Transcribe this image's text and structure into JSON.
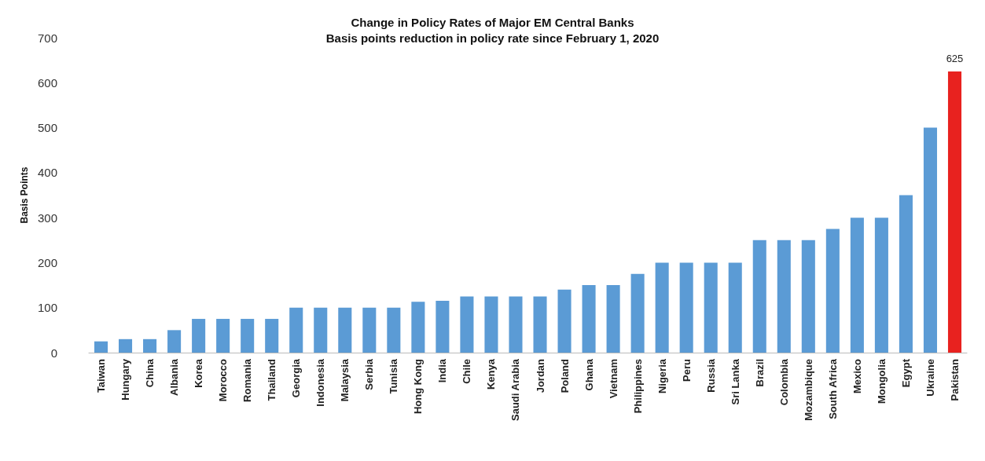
{
  "chart_data": {
    "type": "bar",
    "title": "Change in Policy Rates of Major EM Central Banks",
    "subtitle": "Basis points reduction in policy rate since February 1, 2020",
    "ylabel": "Basis Points",
    "categories": [
      "Taiwan",
      "Hungary",
      "China",
      "Albania",
      "Korea",
      "Morocco",
      "Romania",
      "Thailand",
      "Georgia",
      "Indonesia",
      "Malaysia",
      "Serbia",
      "Tunisia",
      "Hong Kong",
      "India",
      "Chile",
      "Kenya",
      "Saudi Arabia",
      "Jordan",
      "Poland",
      "Ghana",
      "Vietnam",
      "Philippines",
      "Nigeria",
      "Peru",
      "Russia",
      "Sri Lanka",
      "Brazil",
      "Colombia",
      "Mozambique",
      "South Africa",
      "Mexico",
      "Mongolia",
      "Egypt",
      "Ukraine",
      "Pakistan"
    ],
    "values": [
      25,
      30,
      30,
      50,
      75,
      75,
      75,
      75,
      100,
      100,
      100,
      100,
      100,
      113,
      115,
      125,
      125,
      125,
      125,
      140,
      150,
      150,
      175,
      200,
      200,
      200,
      200,
      250,
      250,
      250,
      275,
      300,
      300,
      350,
      500,
      625
    ],
    "colors": [
      "#5b9bd5",
      "#5b9bd5",
      "#5b9bd5",
      "#5b9bd5",
      "#5b9bd5",
      "#5b9bd5",
      "#5b9bd5",
      "#5b9bd5",
      "#5b9bd5",
      "#5b9bd5",
      "#5b9bd5",
      "#5b9bd5",
      "#5b9bd5",
      "#5b9bd5",
      "#5b9bd5",
      "#5b9bd5",
      "#5b9bd5",
      "#5b9bd5",
      "#5b9bd5",
      "#5b9bd5",
      "#5b9bd5",
      "#5b9bd5",
      "#5b9bd5",
      "#5b9bd5",
      "#5b9bd5",
      "#5b9bd5",
      "#5b9bd5",
      "#5b9bd5",
      "#5b9bd5",
      "#5b9bd5",
      "#5b9bd5",
      "#5b9bd5",
      "#5b9bd5",
      "#5b9bd5",
      "#5b9bd5",
      "#e8221f"
    ],
    "value_labels": [
      null,
      null,
      null,
      null,
      null,
      null,
      null,
      null,
      null,
      null,
      null,
      null,
      null,
      null,
      null,
      null,
      null,
      null,
      null,
      null,
      null,
      null,
      null,
      null,
      null,
      null,
      null,
      null,
      null,
      null,
      null,
      null,
      null,
      null,
      null,
      "625"
    ],
    "ylim": [
      0,
      700
    ],
    "yticks": [
      0,
      100,
      200,
      300,
      400,
      500,
      600,
      700
    ],
    "grid": false
  }
}
